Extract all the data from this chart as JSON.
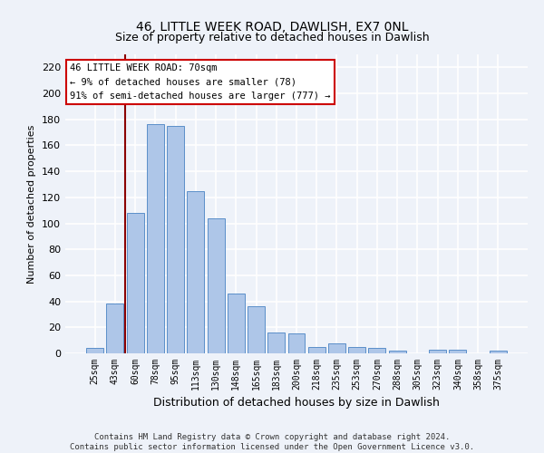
{
  "title": "46, LITTLE WEEK ROAD, DAWLISH, EX7 0NL",
  "subtitle": "Size of property relative to detached houses in Dawlish",
  "xlabel": "Distribution of detached houses by size in Dawlish",
  "ylabel": "Number of detached properties",
  "bar_labels": [
    "25sqm",
    "43sqm",
    "60sqm",
    "78sqm",
    "95sqm",
    "113sqm",
    "130sqm",
    "148sqm",
    "165sqm",
    "183sqm",
    "200sqm",
    "218sqm",
    "235sqm",
    "253sqm",
    "270sqm",
    "288sqm",
    "305sqm",
    "323sqm",
    "340sqm",
    "358sqm",
    "375sqm"
  ],
  "bar_values": [
    4,
    38,
    108,
    176,
    175,
    125,
    104,
    46,
    36,
    16,
    15,
    5,
    8,
    5,
    4,
    2,
    0,
    3,
    3,
    0,
    2
  ],
  "bar_color": "#aec6e8",
  "bar_edge_color": "#5b8fc9",
  "vline_x": 1.5,
  "vline_color": "#8b0000",
  "annotation_text": "46 LITTLE WEEK ROAD: 70sqm\n← 9% of detached houses are smaller (78)\n91% of semi-detached houses are larger (777) →",
  "annotation_box_color": "#ffffff",
  "annotation_box_edge": "#cc0000",
  "ylim": [
    0,
    230
  ],
  "yticks": [
    0,
    20,
    40,
    60,
    80,
    100,
    120,
    140,
    160,
    180,
    200,
    220
  ],
  "footer": "Contains HM Land Registry data © Crown copyright and database right 2024.\nContains public sector information licensed under the Open Government Licence v3.0.",
  "bg_color": "#eef2f9",
  "grid_color": "#ffffff"
}
